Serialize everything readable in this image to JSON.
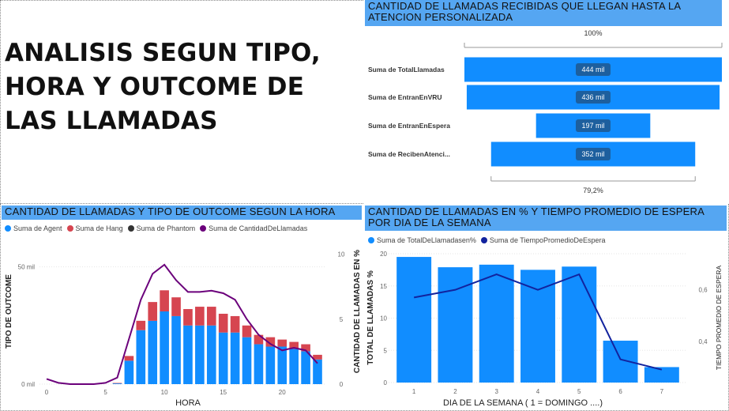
{
  "page_title": "ANALISIS SEGUN TIPO, HORA Y OUTCOME DE LAS LLAMADAS",
  "colors": {
    "accent_header": "#55a6f2",
    "bar_blue": "#118dff",
    "bar_red": "#d64550",
    "phantom": "#333333",
    "line_purple": "#6b007b",
    "line_navy": "#12239e"
  },
  "funnel": {
    "title": "CANTIDAD DE LLAMADAS RECIBIDAS QUE LLEGAN HASTA LA ATENCION PERSONALIZADA",
    "top_label": "100%",
    "bottom_label": "79,2%"
  },
  "hour_chart": {
    "title": "CANTIDAD DE LLAMADAS Y TIPO DE OUTCOME SEGUN LA HORA",
    "legend": [
      "Suma de Agent",
      "Suma de Hang",
      "Suma de Phantom",
      "Suma de CantidadDeLlamadas"
    ],
    "xlabel": "HORA",
    "ylabel_left": "TIPO DE OUTCOME",
    "ylabel_right": "CANTIDAD DE LLAMADAS EN %",
    "left_ticks": [
      "0 mil",
      "50 mil"
    ],
    "right_ticks": [
      "0",
      "5",
      "10"
    ],
    "x_ticks": [
      "0",
      "5",
      "10",
      "15",
      "20"
    ]
  },
  "week_chart": {
    "title": "CANTIDAD DE LLAMADAS EN % Y TIEMPO PROMEDIO DE ESPERA POR DIA DE LA SEMANA",
    "legend": [
      "Suma de TotalDeLlamadasen%",
      "Suma de TiempoPromedioDeEspera"
    ],
    "xlabel": "DIA DE LA SEMANA ( 1 = DOMINGO ....)",
    "ylabel_left": "TOTAL DE LLAMADAS %",
    "ylabel_right": "TIEMPO PROMEDIO DE ESPERA",
    "left_ticks": [
      "0",
      "5",
      "10",
      "15",
      "20"
    ],
    "right_ticks": [
      "0,4",
      "0,6"
    ],
    "x_ticks": [
      "1",
      "2",
      "3",
      "4",
      "5",
      "6",
      "7"
    ]
  },
  "chart_data": [
    {
      "type": "bar",
      "subtype": "funnel",
      "title": "CANTIDAD DE LLAMADAS RECIBIDAS QUE LLEGAN HASTA LA ATENCION PERSONALIZADA",
      "categories": [
        "Suma de TotalLlamadas",
        "Suma de EntranEnVRU",
        "Suma de EntranEnEspera",
        "Suma de RecibenAtenci..."
      ],
      "values": [
        444,
        436,
        197,
        352
      ],
      "value_labels": [
        "444 mil",
        "436 mil",
        "197 mil",
        "352 mil"
      ],
      "top_label": "100%",
      "bottom_label": "79,2%"
    },
    {
      "type": "bar",
      "subtype": "stacked-bar-with-line",
      "title": "CANTIDAD DE LLAMADAS Y TIPO DE OUTCOME SEGUN LA HORA",
      "x": [
        0,
        1,
        2,
        3,
        4,
        5,
        6,
        7,
        8,
        9,
        10,
        11,
        12,
        13,
        14,
        15,
        16,
        17,
        18,
        19,
        20,
        21,
        22,
        23
      ],
      "series": [
        {
          "name": "Suma de Agent",
          "axis": "left",
          "values": [
            0,
            0,
            0,
            0,
            0,
            0,
            0.3,
            10,
            23,
            27,
            31,
            29,
            25,
            25,
            25,
            22,
            22,
            20,
            17,
            16,
            16,
            15,
            14,
            10.5
          ]
        },
        {
          "name": "Suma de Hang",
          "axis": "left",
          "values": [
            0,
            0,
            0,
            0,
            0,
            0,
            0.2,
            2,
            4,
            8,
            9,
            8,
            7,
            8,
            8,
            8,
            7,
            5,
            4,
            4,
            3,
            3,
            3,
            2
          ]
        },
        {
          "name": "Suma de Phantom",
          "axis": "left",
          "values": [
            0,
            0,
            0,
            0,
            0,
            0,
            0,
            0,
            0,
            0,
            0,
            0,
            0,
            0,
            0,
            0,
            0,
            0,
            0,
            0,
            0,
            0,
            0,
            0
          ]
        },
        {
          "name": "Suma de CantidadDeLlamadas",
          "axis": "right",
          "type": "line",
          "values": [
            0.4,
            0.1,
            0,
            0,
            0,
            0.1,
            0.5,
            3.5,
            6.5,
            8.5,
            9.2,
            8,
            7.1,
            7.1,
            7.2,
            7,
            6.5,
            5,
            3.8,
            3.1,
            2.6,
            2.8,
            2.6,
            1.6
          ]
        }
      ],
      "xlabel": "HORA",
      "ylabel_left": "TIPO DE OUTCOME",
      "ylabel_right": "CANTIDAD DE LLAMADAS EN %",
      "ylim_left": [
        0,
        62
      ],
      "ylim_right": [
        0,
        11.2
      ],
      "left_ticks": [
        "0 mil",
        "50 mil"
      ],
      "right_ticks": [
        0,
        5,
        10
      ]
    },
    {
      "type": "bar",
      "subtype": "bar-with-line",
      "title": "CANTIDAD DE LLAMADAS EN % Y TIEMPO PROMEDIO DE ESPERA POR DIA DE LA SEMANA",
      "categories": [
        "1",
        "2",
        "3",
        "4",
        "5",
        "6",
        "7"
      ],
      "series": [
        {
          "name": "Suma de TotalDeLlamadasen%",
          "axis": "left",
          "values": [
            19.5,
            17.9,
            18.3,
            17.5,
            18,
            6.5,
            2.4
          ]
        },
        {
          "name": "Suma de TiempoPromedioDeEspera",
          "axis": "right",
          "type": "line",
          "values": [
            0.57,
            0.6,
            0.66,
            0.6,
            0.66,
            0.33,
            0.29
          ]
        }
      ],
      "xlabel": "DIA DE LA SEMANA ( 1 = DOMINGO ....)",
      "ylabel_left": "TOTAL DE LLAMADAS %",
      "ylabel_right": "TIEMPO PROMEDIO DE ESPERA",
      "ylim_left": [
        0,
        20
      ],
      "ylim_right": [
        0.24,
        0.74
      ],
      "right_ticks": [
        "0,4",
        "0,6"
      ]
    }
  ]
}
